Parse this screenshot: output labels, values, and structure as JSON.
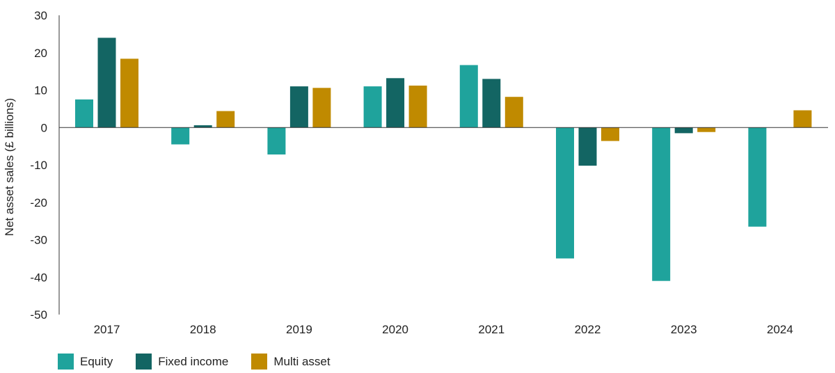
{
  "chart_data": {
    "type": "bar",
    "categories": [
      "2017",
      "2018",
      "2019",
      "2020",
      "2021",
      "2022",
      "2023",
      "2024"
    ],
    "series": [
      {
        "name": "Equity",
        "color": "#1fa39c",
        "values": [
          7.5,
          -4.5,
          -7.2,
          11.0,
          16.7,
          -35.0,
          -41.0,
          -26.5
        ]
      },
      {
        "name": "Fixed income",
        "color": "#136563",
        "values": [
          24.0,
          0.6,
          11.0,
          13.2,
          13.0,
          -10.2,
          -1.5,
          0
        ]
      },
      {
        "name": "Multi asset",
        "color": "#c08a00",
        "values": [
          18.4,
          4.4,
          10.6,
          11.2,
          8.2,
          -3.6,
          -1.2,
          4.6
        ]
      }
    ],
    "ylabel": "Net asset sales  (£ billions)",
    "xlabel": "",
    "ylim": [
      -50,
      30
    ],
    "yticks": [
      "30",
      "20",
      "10",
      "0",
      "-10",
      "-20",
      "-30",
      "-40",
      "-50"
    ],
    "grid": false,
    "legend_position": "bottom-left"
  }
}
